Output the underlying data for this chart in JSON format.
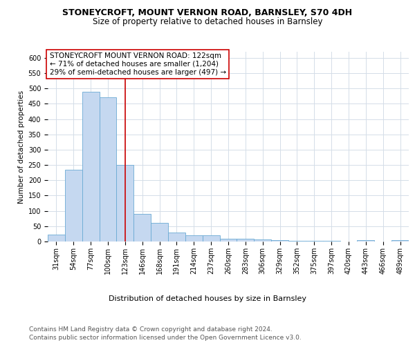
{
  "title1": "STONEYCROFT, MOUNT VERNON ROAD, BARNSLEY, S70 4DH",
  "title2": "Size of property relative to detached houses in Barnsley",
  "xlabel": "Distribution of detached houses by size in Barnsley",
  "ylabel": "Number of detached properties",
  "footnote1": "Contains HM Land Registry data © Crown copyright and database right 2024.",
  "footnote2": "Contains public sector information licensed under the Open Government Licence v3.0.",
  "bin_labels": [
    "31sqm",
    "54sqm",
    "77sqm",
    "100sqm",
    "123sqm",
    "146sqm",
    "168sqm",
    "191sqm",
    "214sqm",
    "237sqm",
    "260sqm",
    "283sqm",
    "306sqm",
    "329sqm",
    "352sqm",
    "375sqm",
    "397sqm",
    "420sqm",
    "443sqm",
    "466sqm",
    "489sqm"
  ],
  "bar_values": [
    22,
    234,
    490,
    472,
    250,
    90,
    60,
    30,
    20,
    20,
    10,
    10,
    7,
    5,
    3,
    2,
    2,
    1,
    5,
    1,
    4
  ],
  "bar_color": "#c5d8f0",
  "bar_edge_color": "#6aaad4",
  "marker_bin_index": 4,
  "marker_color": "#cc0000",
  "annotation_line1": "STONEYCROFT MOUNT VERNON ROAD: 122sqm",
  "annotation_line2": "← 71% of detached houses are smaller (1,204)",
  "annotation_line3": "29% of semi-detached houses are larger (497) →",
  "annotation_box_color": "#ffffff",
  "annotation_border_color": "#cc0000",
  "ylim": [
    0,
    620
  ],
  "yticks": [
    0,
    50,
    100,
    150,
    200,
    250,
    300,
    350,
    400,
    450,
    500,
    550,
    600
  ],
  "grid_color": "#d4dde8",
  "background_color": "#ffffff",
  "title1_fontsize": 9,
  "title2_fontsize": 8.5,
  "xlabel_fontsize": 8,
  "ylabel_fontsize": 7.5,
  "tick_fontsize": 7,
  "annotation_fontsize": 7.5,
  "footnote_fontsize": 6.5
}
